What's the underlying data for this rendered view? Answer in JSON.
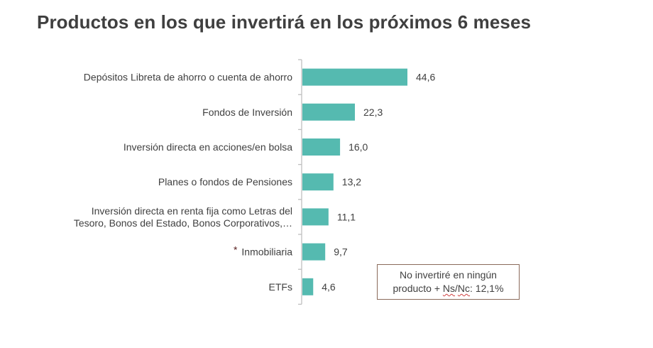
{
  "title": "Productos en los que invertirá en los próximos 6 meses",
  "note": {
    "line1": "No invertiré en ningún",
    "line2_prefix": "producto + ",
    "line2_ns": "Ns",
    "line2_sep": "/",
    "line2_nc": "Nc",
    "line2_suffix": ": 12,1%"
  },
  "colors": {
    "bar": "#55bab0",
    "axis": "#bfbfbf",
    "text": "#404040",
    "note_border": "#8a6a5a"
  },
  "chart_data": {
    "type": "bar",
    "orientation": "horizontal",
    "title": "Productos en los que invertirá en los próximos 6 meses",
    "xlabel": "",
    "ylabel": "",
    "xlim": [
      0,
      50
    ],
    "grid": false,
    "categories": [
      [
        "Depósitos Libreta de ahorro o cuenta de ahorro"
      ],
      [
        "Fondos de Inversión"
      ],
      [
        "Inversión directa en acciones/en bolsa"
      ],
      [
        "Planes o fondos de Pensiones"
      ],
      [
        "Inversión directa en renta fija como Letras del",
        "Tesoro, Bonos del Estado, Bonos Corporativos,…"
      ],
      [
        "Inmobiliaria"
      ],
      [
        "ETFs"
      ]
    ],
    "category_markers": [
      "",
      "",
      "",
      "",
      "",
      "*",
      ""
    ],
    "values": [
      44.6,
      22.3,
      16.0,
      13.2,
      11.1,
      9.7,
      4.6
    ],
    "value_labels": [
      "44,6",
      "22,3",
      "16,0",
      "13,2",
      "11,1",
      "9,7",
      "4,6"
    ],
    "annotation": "No invertiré en ningún producto + Ns/Nc: 12,1%"
  }
}
